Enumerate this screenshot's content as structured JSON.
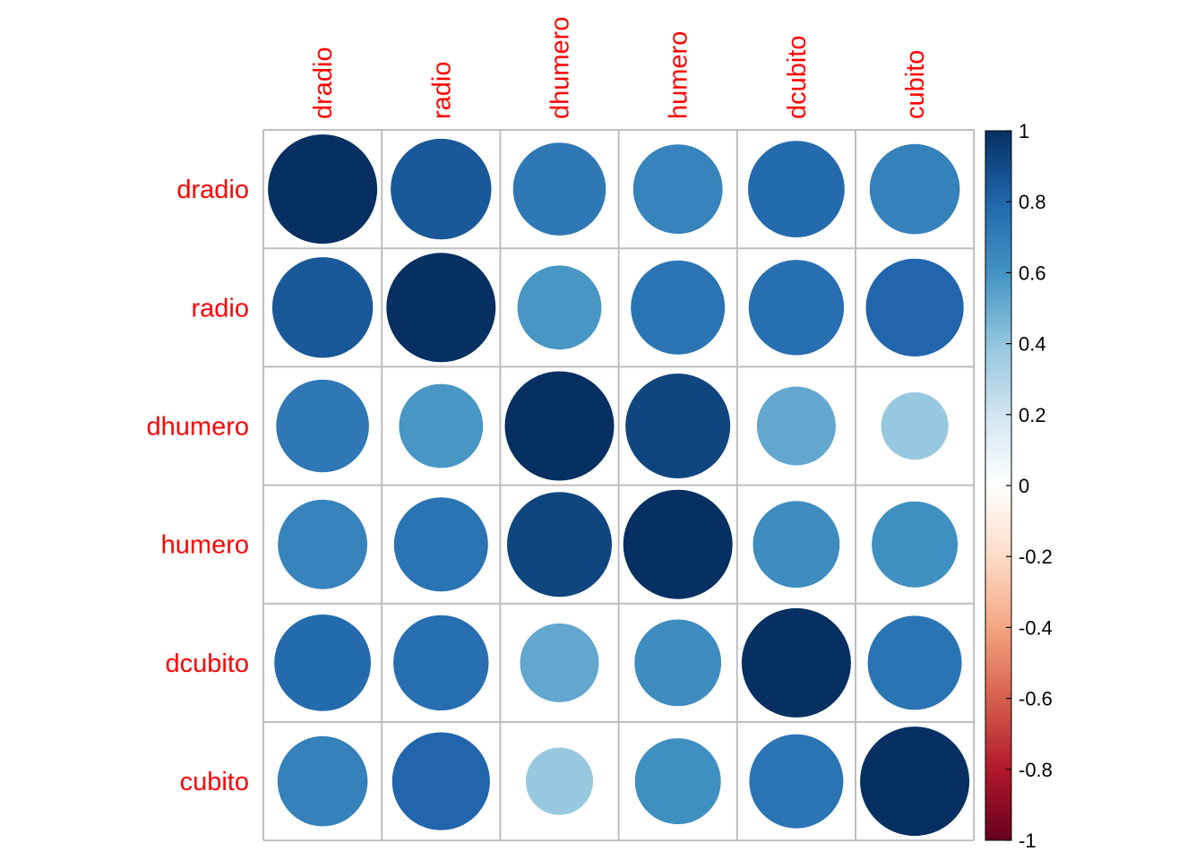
{
  "chart_data": {
    "type": "heatmap",
    "variables": [
      "dradio",
      "radio",
      "dhumero",
      "humero",
      "dcubito",
      "cubito"
    ],
    "matrix": [
      [
        1.0,
        0.85,
        0.72,
        0.67,
        0.78,
        0.68
      ],
      [
        0.85,
        1.0,
        0.59,
        0.74,
        0.76,
        0.8
      ],
      [
        0.72,
        0.59,
        1.0,
        0.92,
        0.52,
        0.38
      ],
      [
        0.67,
        0.74,
        0.92,
        1.0,
        0.63,
        0.62
      ],
      [
        0.78,
        0.76,
        0.52,
        0.63,
        1.0,
        0.74
      ],
      [
        0.68,
        0.8,
        0.38,
        0.62,
        0.74,
        1.0
      ]
    ],
    "colorbar": {
      "range": [
        -1,
        1
      ],
      "ticks": [
        "1",
        "0.8",
        "0.6",
        "0.4",
        "0.2",
        "0",
        "-0.2",
        "-0.4",
        "-0.6",
        "-0.8",
        "-1"
      ]
    },
    "label_color": "#ff0000",
    "grid": true
  }
}
